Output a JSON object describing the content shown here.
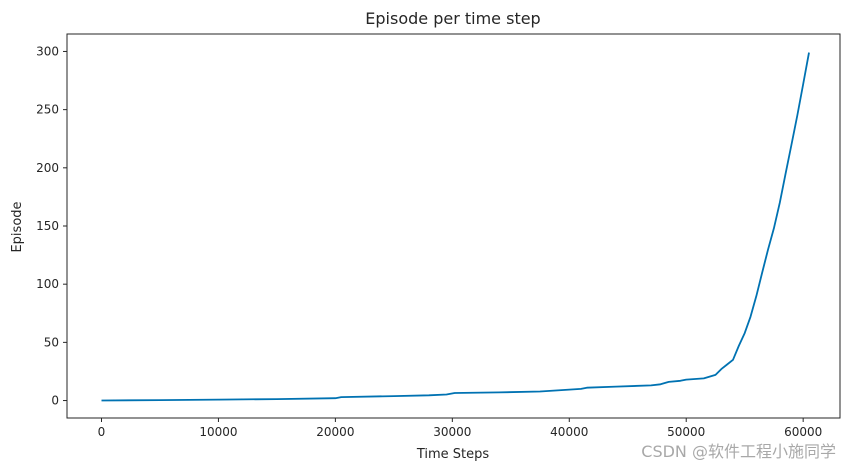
{
  "chart_data": {
    "type": "line",
    "title": "Episode per time step",
    "xlabel": "Time Steps",
    "ylabel": "Episode",
    "xlim": [
      -2950,
      63150
    ],
    "ylim": [
      -15,
      315
    ],
    "xticks": [
      0,
      10000,
      20000,
      30000,
      40000,
      50000,
      60000
    ],
    "yticks": [
      0,
      50,
      100,
      150,
      200,
      250,
      300
    ],
    "grid": false,
    "series": [
      {
        "color": "#0072B2",
        "x": [
          0,
          5000,
          10000,
          15000,
          20000,
          20500,
          25000,
          28000,
          29500,
          30200,
          34000,
          37500,
          41000,
          41500,
          44000,
          47000,
          47800,
          48500,
          49500,
          50000,
          51500,
          52500,
          53000,
          53500,
          54000,
          54500,
          55000,
          55500,
          56000,
          56500,
          57000,
          57500,
          58000,
          58500,
          59000,
          59500,
          60000,
          60500
        ],
        "y": [
          0,
          0.4,
          0.8,
          1.2,
          2,
          3,
          3.8,
          4.5,
          5.2,
          6.5,
          7,
          7.8,
          10,
          11,
          12,
          13,
          14,
          16,
          17,
          18,
          19,
          22,
          27,
          31,
          35,
          47,
          58,
          72,
          90,
          110,
          130,
          148,
          170,
          195,
          220,
          245,
          272,
          299
        ]
      }
    ]
  },
  "watermark": "CSDN @软件工程小施同学"
}
